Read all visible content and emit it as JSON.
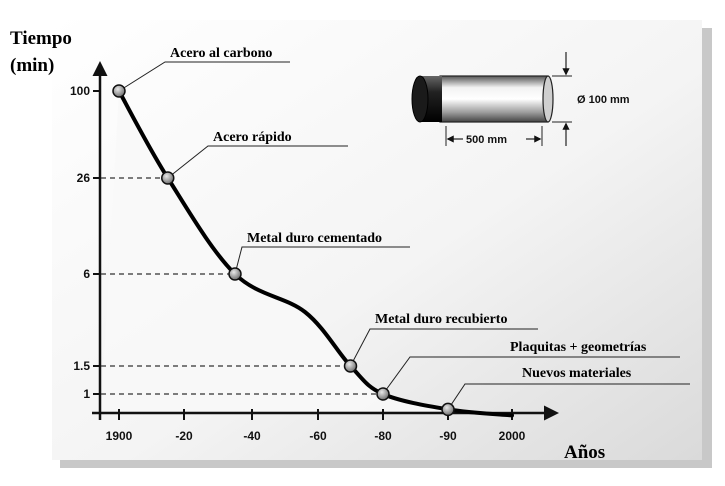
{
  "chart_data": {
    "type": "line",
    "y_title_line1": "Tiempo",
    "y_title_line2": "(min)",
    "xlabel": "Años",
    "x_ticks": [
      "1900",
      "-20",
      "-40",
      "-60",
      "-80",
      "-90",
      "2000"
    ],
    "y_ticks": [
      "100",
      "26",
      "6",
      "1.5",
      "1"
    ],
    "points": [
      {
        "label": "Acero al carbono",
        "x": 1900,
        "y": 100
      },
      {
        "label": "Acero rápido",
        "x": 1915,
        "y": 26
      },
      {
        "label": "Metal duro cementado",
        "x": 1935,
        "y": 6
      },
      {
        "label": "Metal duro recubierto",
        "x": 1970,
        "y": 1.5
      },
      {
        "label": "Plaquitas + geometrías",
        "x": 1980,
        "y": 1
      },
      {
        "label": "Nuevos materiales",
        "x": 1990,
        "y": 0.8
      }
    ],
    "inset": {
      "diameter_label": "Ø 100 mm",
      "length_label": "500 mm"
    }
  }
}
